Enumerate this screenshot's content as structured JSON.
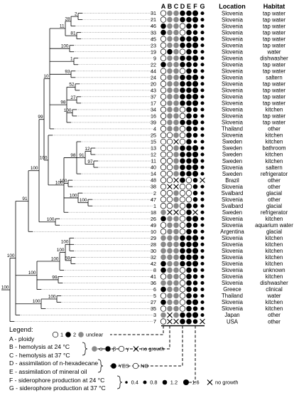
{
  "columns": {
    "letters": [
      "A",
      "B",
      "C",
      "D",
      "E",
      "F",
      "G"
    ],
    "location_header": "Location",
    "habitat_header": "Habitat"
  },
  "strains": [
    {
      "id": "31",
      "location": "Slovenia",
      "habitat": "tap water",
      "traits": [
        "1",
        "a",
        "a",
        "Y",
        "Y",
        1.6,
        0.8
      ]
    },
    {
      "id": "21",
      "location": "Slovenia",
      "habitat": "tap water",
      "traits": [
        "1",
        "a",
        "a",
        "Y",
        "Y",
        1.6,
        0.8
      ]
    },
    {
      "id": "46",
      "location": "Slovenia",
      "habitat": "tap water",
      "traits": [
        "2",
        "a",
        "a",
        "N",
        "Y",
        1.2,
        0.8
      ]
    },
    {
      "id": "33",
      "location": "Slovenia",
      "habitat": "tap water",
      "traits": [
        "2",
        "a",
        "a",
        "N",
        "Y",
        1.2,
        0.8
      ]
    },
    {
      "id": "45",
      "location": "Slovenia",
      "habitat": "tap water",
      "traits": [
        "1",
        "a",
        "a",
        "Y",
        "Y",
        1.6,
        0.8
      ]
    },
    {
      "id": "23",
      "location": "Slovenia",
      "habitat": "tap water",
      "traits": [
        "1",
        "a",
        "a",
        "Y",
        "Y",
        1.6,
        0.8
      ]
    },
    {
      "id": "19",
      "location": "Slovenia",
      "habitat": "water",
      "traits": [
        "1",
        "b",
        "a",
        "N",
        "Y",
        1.2,
        0.8
      ]
    },
    {
      "id": "9",
      "location": "Slovenia",
      "habitat": "dishwasher",
      "traits": [
        "1",
        "a",
        "a",
        "Y",
        "Y",
        1.6,
        0.8
      ]
    },
    {
      "id": "22",
      "location": "Slovenia",
      "habitat": "tap water",
      "traits": [
        "2",
        "a",
        "a",
        "Y",
        "Y",
        1.2,
        0.8
      ]
    },
    {
      "id": "44",
      "location": "Slovenia",
      "habitat": "tap water",
      "traits": [
        "1",
        "a",
        "a",
        "N",
        "Y",
        1.2,
        0.8
      ]
    },
    {
      "id": "24",
      "location": "Slovenia",
      "habitat": "saltern",
      "traits": [
        "1",
        "a",
        "a",
        "Y",
        "Y",
        1.6,
        0.8
      ]
    },
    {
      "id": "20",
      "location": "Slovenia",
      "habitat": "tap water",
      "traits": [
        "1",
        "a",
        "a",
        "Y",
        "Y",
        1.6,
        0.8
      ]
    },
    {
      "id": "43",
      "location": "Slovenia",
      "habitat": "tap water",
      "traits": [
        "1",
        "a",
        "a",
        "Y",
        "Y",
        1.6,
        0.8
      ]
    },
    {
      "id": "37",
      "location": "Slovenia",
      "habitat": "tap water",
      "traits": [
        "1",
        "a",
        "a",
        "Y",
        "Y",
        1.6,
        0.8
      ]
    },
    {
      "id": "17",
      "location": "Slovenia",
      "habitat": "tap water",
      "traits": [
        "1",
        "a",
        "a",
        "Y",
        "Y",
        1.6,
        0.8
      ]
    },
    {
      "id": "34",
      "location": "Slovenia",
      "habitat": "kitchen",
      "traits": [
        "1",
        "a",
        "a",
        "N",
        "Y",
        1.2,
        0.8
      ]
    },
    {
      "id": "16",
      "location": "Slovenia",
      "habitat": "tap water",
      "traits": [
        "1",
        "a",
        "a",
        "N",
        "Y",
        1.2,
        0.8
      ]
    },
    {
      "id": "39",
      "location": "Slovenia",
      "habitat": "tap water",
      "traits": [
        "1",
        "a",
        "a",
        "Y",
        "Y",
        1.6,
        0.8
      ]
    },
    {
      "id": "4",
      "location": "Thailand",
      "habitat": "other",
      "traits": [
        "1",
        "a",
        "a",
        "N",
        "Y",
        1.2,
        0.8
      ]
    },
    {
      "id": "25",
      "location": "Slovenia",
      "habitat": "kitchen",
      "traits": [
        "1",
        "g",
        "a",
        "N",
        "Y",
        1.2,
        0.8
      ]
    },
    {
      "id": "15",
      "location": "Sweden",
      "habitat": "kitchen",
      "traits": [
        "1",
        "g",
        "x",
        "N",
        "Y",
        0.8,
        0.8
      ]
    },
    {
      "id": "13",
      "location": "Sweden",
      "habitat": "bathroom",
      "traits": [
        "1",
        "g",
        "a",
        "Y",
        "Y",
        1.6,
        0.8
      ]
    },
    {
      "id": "12",
      "location": "Sweden",
      "habitat": "kitchen",
      "traits": [
        "1",
        "g",
        "a",
        "Y",
        "Y",
        1.6,
        0.8
      ]
    },
    {
      "id": "11",
      "location": "Sweden",
      "habitat": "kitchen",
      "traits": [
        "1",
        "g",
        "a",
        "Y",
        "Y",
        1.6,
        0.8
      ]
    },
    {
      "id": "40",
      "location": "Slovenia",
      "habitat": "saltern",
      "traits": [
        "1",
        "g",
        "a",
        "Y",
        "Y",
        1.6,
        0.8
      ]
    },
    {
      "id": "14",
      "location": "Sweden",
      "habitat": "refrigerator",
      "traits": [
        "1",
        "g",
        "a",
        "Y",
        "Y",
        1.6,
        0.8
      ]
    },
    {
      "id": "48",
      "location": "Brazil",
      "habitat": "other",
      "traits": [
        "1",
        "g",
        "x",
        "Y",
        "N",
        1.2,
        "x"
      ]
    },
    {
      "id": "38",
      "location": "Slovenia",
      "habitat": "other",
      "traits": [
        "1",
        "x",
        "x",
        "N",
        "N",
        1.2,
        0.8
      ]
    },
    {
      "id": "2",
      "location": "Svalbard",
      "habitat": "glacial",
      "traits": [
        "1",
        "g",
        "a",
        "N",
        "N",
        1.2,
        0.8
      ]
    },
    {
      "id": "47",
      "location": "Slovenia",
      "habitat": "other",
      "traits": [
        "1",
        "g",
        "a",
        "N",
        "N",
        1.2,
        0.8
      ]
    },
    {
      "id": "1",
      "location": "Svalbard",
      "habitat": "glacial",
      "traits": [
        "1",
        "g",
        "a",
        "N",
        "Y",
        1.2,
        0.8
      ]
    },
    {
      "id": "18",
      "location": "Sweden",
      "habitat": "refrigerator",
      "traits": [
        "u",
        "x",
        "x",
        "N",
        "Y",
        "x",
        0.8
      ]
    },
    {
      "id": "26",
      "location": "Slovenia",
      "habitat": "kitchen",
      "traits": [
        "2",
        "a",
        "a",
        "N",
        "Y",
        1.6,
        0.8
      ]
    },
    {
      "id": "49",
      "location": "Slovenia",
      "habitat": "aquarium water",
      "traits": [
        "1",
        "a",
        "a",
        "N",
        "Y",
        1.2,
        0.8
      ]
    },
    {
      "id": "10",
      "location": "Argentina",
      "habitat": "glacial",
      "traits": [
        "1",
        "a",
        "a",
        "N",
        "Y",
        1.2,
        0.8
      ]
    },
    {
      "id": "29",
      "location": "Slovenia",
      "habitat": "kitchen",
      "traits": [
        "u",
        "a",
        "a",
        "Y",
        "Y",
        1.6,
        0.8
      ]
    },
    {
      "id": "28",
      "location": "Slovenia",
      "habitat": "kitchen",
      "traits": [
        "u",
        "a",
        "a",
        "Y",
        "Y",
        1.6,
        0.8
      ]
    },
    {
      "id": "30",
      "location": "Slovenia",
      "habitat": "kitchen",
      "traits": [
        "u",
        "a",
        "a",
        "Y",
        "Y",
        1.6,
        0.8
      ]
    },
    {
      "id": "32",
      "location": "Slovenia",
      "habitat": "kitchen",
      "traits": [
        "u",
        "a",
        "a",
        "Y",
        "Y",
        1.6,
        0.8
      ]
    },
    {
      "id": "42",
      "location": "Slovenia",
      "habitat": "kitchen",
      "traits": [
        "2",
        "a",
        "a",
        "Y",
        "Y",
        1.6,
        0.8
      ]
    },
    {
      "id": "8",
      "location": "Slovenia",
      "habitat": "unknown",
      "traits": [
        "2",
        "a",
        "a",
        "N",
        "Y",
        1.2,
        0.8
      ]
    },
    {
      "id": "41",
      "location": "Slovenia",
      "habitat": "kitchen",
      "traits": [
        "1",
        "a",
        "a",
        "N",
        "Y",
        1.2,
        0.8
      ]
    },
    {
      "id": "36",
      "location": "Slovenia",
      "habitat": "dishwasher",
      "traits": [
        "u",
        "a",
        "a",
        "N",
        "Y",
        1.2,
        0.8
      ]
    },
    {
      "id": "6",
      "location": "Greece",
      "habitat": "clinical",
      "traits": [
        "2",
        "a",
        "a",
        "N",
        "Y",
        1.2,
        0.8
      ]
    },
    {
      "id": "5",
      "location": "Thailand",
      "habitat": "water",
      "traits": [
        "1",
        "a",
        "a",
        "N",
        "Y",
        1.2,
        0.8
      ]
    },
    {
      "id": "27",
      "location": "Slovenia",
      "habitat": "kitchen",
      "traits": [
        "2",
        "a",
        "a",
        "N",
        "Y",
        1.6,
        0.8
      ]
    },
    {
      "id": "35",
      "location": "Slovenia",
      "habitat": "kitchen",
      "traits": [
        "1",
        "a",
        "a",
        "N",
        "Y",
        1.2,
        0.8
      ]
    },
    {
      "id": "3",
      "location": "Japan",
      "habitat": "other",
      "traits": [
        "u",
        "x",
        "a",
        "Y",
        "Y",
        1.6,
        0.8
      ]
    },
    {
      "id": "7",
      "location": "USA",
      "habitat": "other",
      "traits": [
        "1",
        "x",
        "x",
        "Y",
        "Y",
        1.2,
        "x"
      ]
    }
  ],
  "tree_labels": [
    {
      "text": "2",
      "key": "a"
    },
    {
      "text": "28",
      "key": "b"
    },
    {
      "text": "81",
      "key": "c"
    },
    {
      "text": "11",
      "key": "d"
    },
    {
      "text": "100",
      "key": "e"
    },
    {
      "text": "1",
      "key": "f"
    },
    {
      "text": "34",
      "key": "g"
    },
    {
      "text": "93",
      "key": "h"
    },
    {
      "text": "8",
      "key": "i"
    },
    {
      "text": "15",
      "key": "j"
    },
    {
      "text": "22",
      "key": "k"
    },
    {
      "text": "52",
      "key": "l"
    },
    {
      "text": "57",
      "key": "m"
    },
    {
      "text": "27",
      "key": "n"
    },
    {
      "text": "98",
      "key": "o"
    },
    {
      "text": "100",
      "key": "p"
    },
    {
      "text": "100",
      "key": "q"
    },
    {
      "text": "10",
      "key": "r"
    },
    {
      "text": "100",
      "key": "s"
    },
    {
      "text": "100",
      "key": "t"
    },
    {
      "text": "91",
      "key": "u"
    },
    {
      "text": "12",
      "key": "v"
    },
    {
      "text": "97",
      "key": "w"
    },
    {
      "text": "98",
      "key": "x"
    },
    {
      "text": "100",
      "key": "y"
    },
    {
      "text": "100",
      "key": "z"
    },
    {
      "text": "100",
      "key": "aa"
    },
    {
      "text": "100",
      "key": "ab"
    },
    {
      "text": "99",
      "key": "ac"
    },
    {
      "text": "100",
      "key": "ad"
    },
    {
      "text": "100",
      "key": "ae"
    },
    {
      "text": "91",
      "key": "af"
    },
    {
      "text": "100",
      "key": "ag"
    },
    {
      "text": "100",
      "key": "ah"
    },
    {
      "text": "59",
      "key": "ai"
    },
    {
      "text": "100",
      "key": "aj"
    },
    {
      "text": "99",
      "key": "ak"
    },
    {
      "text": "100",
      "key": "al"
    },
    {
      "text": "100",
      "key": "am"
    },
    {
      "text": "100",
      "key": "an"
    },
    {
      "text": "100",
      "key": "ao"
    },
    {
      "text": "100",
      "key": "ap"
    }
  ],
  "legend": {
    "title": "Legend:",
    "a_line": "A - ploidy",
    "ploidy_one": "1",
    "ploidy_two": "2",
    "ploidy_unclear": "unclear",
    "b_line": "B - hemolysis at 24 °C",
    "c_line": "C - hemolysis at 37 °C",
    "alpha": "α",
    "beta": "β",
    "gamma": "γ",
    "no_growth": "no growth",
    "d_line": "D - assimilation of n-hexadecane",
    "e_line": "E - assimilation of mineral oil",
    "yes": "YES",
    "no": "NO",
    "f_line": "F - siderophore production at 24 °C",
    "g_line": "G - siderophore production at 37 °C",
    "sizes": [
      "0.4",
      "0.8",
      "1.2",
      "1.6"
    ],
    "no_growth2": "no growth"
  },
  "colors": {
    "filled": "#000000",
    "gray": "#8a8a8a",
    "open": "#ffffff",
    "line": "#000000",
    "dotted": "#555555"
  }
}
